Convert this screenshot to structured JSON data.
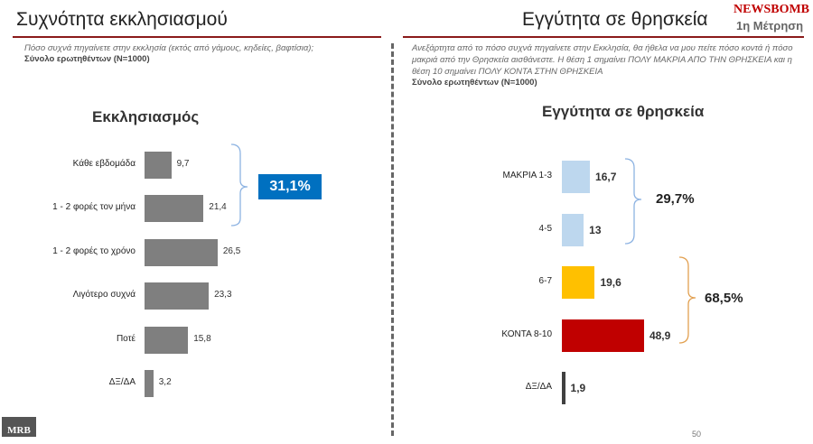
{
  "left": {
    "title": "Συχνότητα εκκλησιασμού",
    "question": "Πόσο συχνά πηγαίνετε στην εκκλησία (εκτός από γάμους, κηδείες, βαφτίσια);",
    "sample": "Σύνολο ερωτηθέντων (N=1000)"
  },
  "right": {
    "title": "Εγγύτητα σε θρησκεία",
    "question": "Ανεξάρτητα από το πόσο συχνά πηγαίνετε στην Εκκλησία, θα ήθελα να μου πείτε πόσο κοντά ή πόσο μακριά από την Θρησκεία αισθάνεστε.  Η θέση 1 σημαίνει ΠΟΛΥ ΜΑΚΡΙΑ ΑΠΟ ΤΗΝ ΘΡΗΣΚΕΙΑ και η θέση 10 σημαίνει ΠΟΛΥ ΚΟΝΤΑ ΣΤΗΝ ΘΡΗΣΚΕΙΑ",
    "sample": "Σύνολο ερωτηθέντων (N=1000)"
  },
  "brand": {
    "logo": "NEWSBOMB",
    "wave": "1η Μέτρηση",
    "footer_logo": "MRB",
    "page": "50"
  },
  "chart_data": [
    {
      "type": "bar",
      "orientation": "horizontal",
      "title": "Εκκλησιασμός",
      "categories": [
        "Κάθε εβδομάδα",
        "1 - 2 φορές τον μήνα",
        "1 - 2 φορές το χρόνο",
        "Λιγότερο συχνά",
        "Ποτέ",
        "ΔΞ/ΔΑ"
      ],
      "values": [
        9.7,
        21.4,
        26.5,
        23.3,
        15.8,
        3.2
      ],
      "labels": [
        "9,7",
        "21,4",
        "26,5",
        "23,3",
        "15,8",
        "3,2"
      ],
      "color": "#7f7f7f",
      "annotation": {
        "text": "31,1%",
        "covers": [
          0,
          1
        ],
        "color": "#0070c0"
      }
    },
    {
      "type": "bar",
      "orientation": "horizontal",
      "title": "Εγγύτητα σε θρησκεία",
      "categories": [
        "ΜΑΚΡΙΑ 1-3",
        "4-5",
        "6-7",
        "ΚΟΝΤΑ 8-10",
        "ΔΞ/ΔΑ"
      ],
      "values": [
        16.7,
        13,
        19.6,
        48.9,
        1.9
      ],
      "labels": [
        "16,7",
        "13",
        "19,6",
        "48,9",
        "1,9"
      ],
      "colors": [
        "#bdd7ee",
        "#bdd7ee",
        "#ffc000",
        "#c00000",
        "#404040"
      ],
      "annotations": [
        {
          "text": "29,7%",
          "covers": [
            0,
            1
          ]
        },
        {
          "text": "68,5%",
          "covers": [
            2,
            3
          ]
        }
      ]
    }
  ]
}
